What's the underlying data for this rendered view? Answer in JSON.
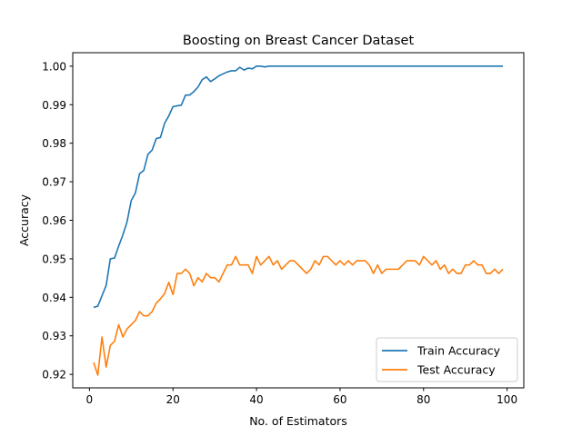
{
  "chart_data": {
    "type": "line",
    "title": "Boosting on Breast Cancer Dataset",
    "xlabel": "No. of Estimators",
    "ylabel": "Accuracy",
    "xlim": [
      -4,
      104
    ],
    "ylim": [
      0.9165,
      1.0035
    ],
    "xticks": [
      0,
      20,
      40,
      60,
      80,
      100
    ],
    "yticks": [
      0.92,
      0.93,
      0.94,
      0.95,
      0.96,
      0.97,
      0.98,
      0.99,
      1.0
    ],
    "ytick_labels": [
      "0.92",
      "0.93",
      "0.94",
      "0.95",
      "0.96",
      "0.97",
      "0.98",
      "0.99",
      "1.00"
    ],
    "grid": false,
    "legend_position": "lower-right",
    "series": [
      {
        "name": "Train Accuracy",
        "color": "#1f77b4",
        "x": [
          1,
          2,
          3,
          4,
          5,
          6,
          7,
          8,
          9,
          10,
          11,
          12,
          13,
          14,
          15,
          16,
          17,
          18,
          19,
          20,
          21,
          22,
          23,
          24,
          25,
          26,
          27,
          28,
          29,
          30,
          31,
          32,
          33,
          34,
          35,
          36,
          37,
          38,
          39,
          40,
          41,
          42,
          43,
          44,
          45,
          46,
          47,
          48,
          49,
          50,
          51,
          52,
          53,
          54,
          55,
          56,
          57,
          58,
          59,
          60,
          61,
          62,
          63,
          64,
          65,
          66,
          67,
          68,
          69,
          70,
          71,
          72,
          73,
          74,
          75,
          76,
          77,
          78,
          79,
          80,
          81,
          82,
          83,
          84,
          85,
          86,
          87,
          88,
          89,
          90,
          91,
          92,
          93,
          94,
          95,
          96,
          97,
          98,
          99
        ],
        "values": [
          0.9374,
          0.9377,
          0.9404,
          0.9431,
          0.95,
          0.9502,
          0.9533,
          0.9562,
          0.9596,
          0.9651,
          0.9671,
          0.9721,
          0.9729,
          0.9771,
          0.9782,
          0.9812,
          0.9815,
          0.9852,
          0.9871,
          0.9895,
          0.9897,
          0.9899,
          0.9925,
          0.9925,
          0.9934,
          0.9946,
          0.9965,
          0.9972,
          0.996,
          0.9967,
          0.9975,
          0.998,
          0.9985,
          0.9988,
          0.9988,
          0.9997,
          0.999,
          0.9995,
          0.9993,
          1.0,
          1.0,
          0.9998,
          1.0,
          1.0,
          1.0,
          1.0,
          1.0,
          1.0,
          1.0,
          1.0,
          1.0,
          1.0,
          1.0,
          1.0,
          1.0,
          1.0,
          1.0,
          1.0,
          1.0,
          1.0,
          1.0,
          1.0,
          1.0,
          1.0,
          1.0,
          1.0,
          1.0,
          1.0,
          1.0,
          1.0,
          1.0,
          1.0,
          1.0,
          1.0,
          1.0,
          1.0,
          1.0,
          1.0,
          1.0,
          1.0,
          1.0,
          1.0,
          1.0,
          1.0,
          1.0,
          1.0,
          1.0,
          1.0,
          1.0,
          1.0,
          1.0,
          1.0,
          1.0,
          1.0,
          1.0,
          1.0,
          1.0,
          1.0,
          1.0
        ]
      },
      {
        "name": "Test Accuracy",
        "color": "#ff7f0e",
        "x": [
          1,
          2,
          3,
          4,
          5,
          6,
          7,
          8,
          9,
          10,
          11,
          12,
          13,
          14,
          15,
          16,
          17,
          18,
          19,
          20,
          21,
          22,
          23,
          24,
          25,
          26,
          27,
          28,
          29,
          30,
          31,
          32,
          33,
          34,
          35,
          36,
          37,
          38,
          39,
          40,
          41,
          42,
          43,
          44,
          45,
          46,
          47,
          48,
          49,
          50,
          51,
          52,
          53,
          54,
          55,
          56,
          57,
          58,
          59,
          60,
          61,
          62,
          63,
          64,
          65,
          66,
          67,
          68,
          69,
          70,
          71,
          72,
          73,
          74,
          75,
          76,
          77,
          78,
          79,
          80,
          81,
          82,
          83,
          84,
          85,
          86,
          87,
          88,
          89,
          90,
          91,
          92,
          93,
          94,
          95,
          96,
          97,
          98,
          99
        ],
        "values": [
          0.9231,
          0.9198,
          0.9297,
          0.9219,
          0.9275,
          0.9286,
          0.9329,
          0.9297,
          0.9318,
          0.9329,
          0.934,
          0.9363,
          0.9352,
          0.9352,
          0.9363,
          0.9385,
          0.9396,
          0.941,
          0.9439,
          0.9407,
          0.9462,
          0.9462,
          0.9473,
          0.9462,
          0.943,
          0.9451,
          0.944,
          0.9462,
          0.9451,
          0.9451,
          0.944,
          0.9462,
          0.9484,
          0.9484,
          0.9506,
          0.9484,
          0.9484,
          0.9484,
          0.9462,
          0.9506,
          0.9484,
          0.9495,
          0.9506,
          0.9484,
          0.9495,
          0.9473,
          0.9484,
          0.9495,
          0.9495,
          0.9484,
          0.9473,
          0.9462,
          0.9473,
          0.9495,
          0.9484,
          0.9506,
          0.9506,
          0.9495,
          0.9484,
          0.9495,
          0.9484,
          0.9495,
          0.9484,
          0.9495,
          0.9495,
          0.9495,
          0.9484,
          0.9462,
          0.9484,
          0.9462,
          0.9473,
          0.9473,
          0.9473,
          0.9473,
          0.9484,
          0.9495,
          0.9495,
          0.9495,
          0.9484,
          0.9506,
          0.9495,
          0.9484,
          0.9495,
          0.9473,
          0.9484,
          0.9462,
          0.9473,
          0.9462,
          0.9462,
          0.9484,
          0.9484,
          0.9495,
          0.9484,
          0.9484,
          0.9462,
          0.9462,
          0.9473,
          0.9462,
          0.9473
        ]
      }
    ]
  }
}
